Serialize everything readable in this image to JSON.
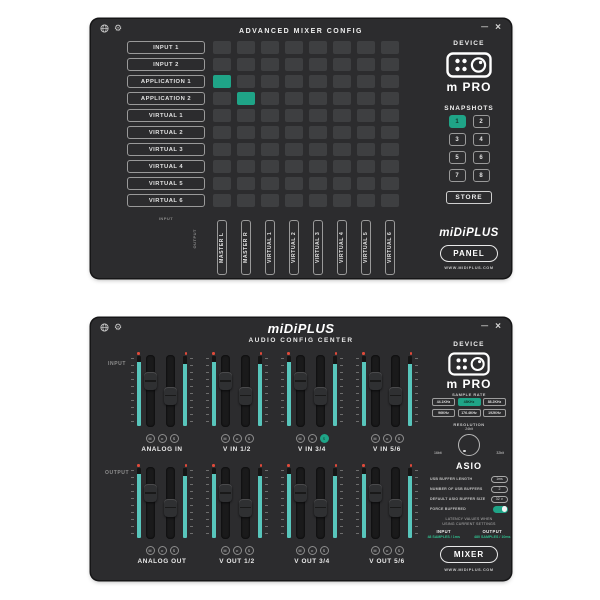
{
  "icons": {
    "gear": "⚙",
    "minimize": "—",
    "close": "×",
    "chevron_down": "∨"
  },
  "mixer": {
    "title": "ADVANCED MIXER CONFIG",
    "inputs": [
      "INPUT 1",
      "INPUT 2",
      "APPLICATION 1",
      "APPLICATION 2",
      "VIRTUAL 1",
      "VIRTUAL 2",
      "VIRTUAL 3",
      "VIRTUAL 4",
      "VIRTUAL 5",
      "VIRTUAL 6"
    ],
    "outputs": [
      "MASTER L",
      "MASTER R",
      "VIRTUAL 1",
      "VIRTUAL 2",
      "VIRTUAL 3",
      "VIRTUAL 4",
      "VIRTUAL 5",
      "VIRTUAL 6"
    ],
    "grid": {
      "rows": 10,
      "cols": 8,
      "active": [
        [
          2,
          0
        ],
        [
          3,
          1
        ]
      ]
    },
    "axis": {
      "input": "INPUT",
      "output": "OUTPUT"
    },
    "device_label": "DEVICE",
    "device_model_prefix": "m",
    "device_model": "PRO",
    "snapshots_label": "SNAPSHOTS",
    "snapshot_buttons": [
      "1",
      "2",
      "3",
      "4",
      "5",
      "6",
      "7",
      "8"
    ],
    "snapshot_active": "1",
    "store_label": "STORE",
    "brand": "miDiPLUS",
    "panel_label": "PANEL",
    "website": "WWW.MIDIPLUS.COM"
  },
  "audio": {
    "brand": "miDiPLUS",
    "subtitle": "AUDIO CONFIG CENTER",
    "axis": {
      "input": "INPUT",
      "output": "OUTPUT"
    },
    "input_channels": [
      "ANALOG IN",
      "V IN 1/2",
      "V IN 3/4",
      "V IN 5/6"
    ],
    "output_channels": [
      "ANALOG OUT",
      "V OUT 1/2",
      "V OUT 3/4",
      "V OUT 5/6"
    ],
    "channel_buttons": [
      "M",
      "∞",
      "S"
    ],
    "active_channel_button": {
      "row": "input",
      "channel_index": 2,
      "button_index": 2
    },
    "fader_positions": {
      "left_pct": 24,
      "right_pct": 44
    },
    "meter_levels": {
      "left_pct": 92,
      "right_pct": 88
    },
    "device_label": "DEVICE",
    "device_model_prefix": "m",
    "device_model": "PRO",
    "sample_rate_label": "SAMPLE RATE",
    "sample_rates": [
      "44.1KHz",
      "48KHz",
      "88.2KHz",
      "96KHz",
      "176.4KHz",
      "192KHz"
    ],
    "sample_rate_selected": "48KHz",
    "resolution_label": "RESOLUTION",
    "resolution_top": "24bit",
    "resolution_left": "16bit",
    "resolution_right": "32bit",
    "asio_title": "ASIO",
    "asio_rows": [
      {
        "label": "USB BUFFER LENGTH",
        "value": "1ms"
      },
      {
        "label": "NUMBER OF USB BUFFERS",
        "value": "2"
      },
      {
        "label": "DEFAULT ASIO BUFFER SIZE",
        "value": "32"
      }
    ],
    "force_buffered_label": "FORCE BUFFERED",
    "force_buffered_on": true,
    "latency_note_1": "LATENCY VALUES WHEN",
    "latency_note_2": "USING CURRENT SETTINGS",
    "latency_input_label": "INPUT",
    "latency_input_value": "48 SAMPLES / 1ms",
    "latency_output_label": "OUTPUT",
    "latency_output_value": "480 SAMPLES / 10ms",
    "mixer_label": "MIXER",
    "website": "WWW.MIDIPLUS.COM"
  }
}
